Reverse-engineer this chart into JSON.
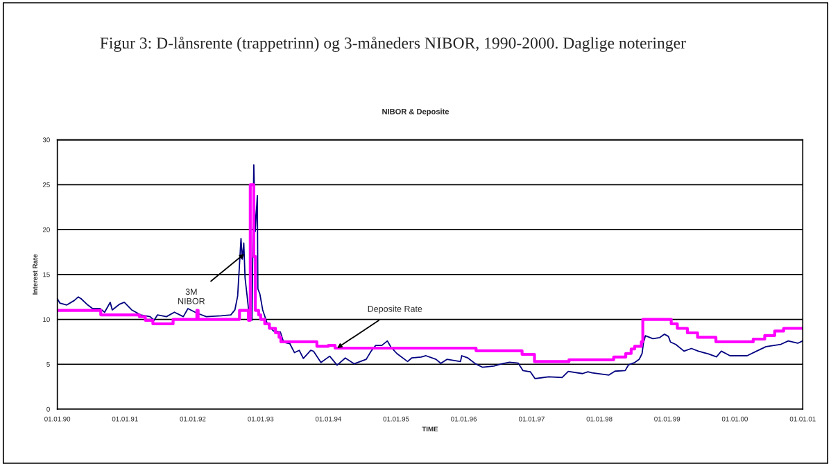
{
  "chart_data": {
    "type": "line",
    "title": "Figur 3: D-lånsrente (trappetrinn) og 3-måneders NIBOR, 1990-2000. Daglige noteringer",
    "subtitle": "NIBOR & Deposite",
    "xlabel": "TIME",
    "ylabel": "Interest Rate",
    "xlim": [
      "1990-01-01",
      "2001-01-01"
    ],
    "ylim": [
      0,
      30
    ],
    "xticks": [
      {
        "value": "1990-01-01",
        "label": "01.01.90"
      },
      {
        "value": "1991-01-01",
        "label": "01.01.91"
      },
      {
        "value": "1992-01-01",
        "label": "01.01.92"
      },
      {
        "value": "1993-01-01",
        "label": "01.01.93"
      },
      {
        "value": "1994-01-01",
        "label": "01.01.94"
      },
      {
        "value": "1995-01-01",
        "label": "01.01.95"
      },
      {
        "value": "1996-01-01",
        "label": "01.01.96"
      },
      {
        "value": "1997-01-01",
        "label": "01.01.97"
      },
      {
        "value": "1998-01-01",
        "label": "01.01.98"
      },
      {
        "value": "1999-01-01",
        "label": "01.01.99"
      },
      {
        "value": "2000-01-01",
        "label": "01.01.00"
      },
      {
        "value": "2001-01-01",
        "label": "01.01.01"
      }
    ],
    "yticks": [
      0,
      5,
      10,
      15,
      20,
      25,
      30
    ],
    "grid": "y",
    "series": [
      {
        "color": "#000080",
        "x": [
          "1990-01-01",
          "1990-01-15",
          "1990-02-21",
          "1990-04-02",
          "1990-04-24",
          "1990-05-09",
          "1990-06-14",
          "1990-07-10",
          "1990-08-19",
          "1990-09-13",
          "1990-10-13",
          "1990-10-24",
          "1990-12-03",
          "1990-12-28",
          "1991-02-06",
          "1991-03-26",
          "1991-05-16",
          "1991-06-07",
          "1991-06-25",
          "1991-08-12",
          "1991-09-24",
          "1991-11-11",
          "1991-12-06",
          "1992-01-23",
          "1992-03-14",
          "1992-06-03",
          "1992-07-24",
          "1992-08-15",
          "1992-08-30",
          "1992-09-17",
          "1992-09-24",
          "1992-10-02",
          "1992-10-09",
          "1992-10-20",
          "1992-10-31",
          "1992-11-15",
          "1992-11-25",
          "1992-12-03",
          "1992-12-14",
          "1992-12-17",
          "1992-12-28",
          "1993-01-12",
          "1993-02-06",
          "1993-03-11",
          "1993-04-17",
          "1993-05-05",
          "1993-06-07",
          "1993-07-02",
          "1993-07-28",
          "1993-08-19",
          "1993-09-28",
          "1993-10-13",
          "1993-11-22",
          "1994-01-08",
          "1994-02-17",
          "1994-04-02",
          "1994-05-20",
          "1994-07-24",
          "1994-08-19",
          "1994-09-13",
          "1994-10-16",
          "1994-11-15",
          "1994-12-03",
          "1995-01-05",
          "1995-03-04",
          "1995-03-26",
          "1995-05-16",
          "1995-06-11",
          "1995-08-04",
          "1995-08-30",
          "1995-10-02",
          "1995-12-14",
          "1995-12-21",
          "1996-01-23",
          "1996-03-04",
          "1996-04-10",
          "1996-06-11",
          "1996-07-24",
          "1996-09-03",
          "1996-10-20",
          "1996-11-15",
          "1996-12-25",
          "1997-01-19",
          "1997-04-02",
          "1997-06-14",
          "1997-07-17",
          "1997-10-02",
          "1997-10-31",
          "1997-11-22",
          "1998-02-21",
          "1998-03-26",
          "1998-05-20",
          "1998-06-07",
          "1998-07-10",
          "1998-08-04",
          "1998-08-19",
          "1998-08-26",
          "1998-09-06",
          "1998-10-16",
          "1998-11-22",
          "1998-12-17",
          "1999-01-08",
          "1999-01-19",
          "1999-02-17",
          "1999-04-02",
          "1999-05-12",
          "1999-06-18",
          "1999-08-12",
          "1999-09-24",
          "1999-10-20",
          "1999-12-06",
          "2000-03-07",
          "2000-04-27",
          "2000-06-17",
          "2000-09-05",
          "2000-10-15",
          "2000-12-05",
          "2001-01-01"
        ],
        "values": [
          12.3,
          11.8,
          11.6,
          12.1,
          12.5,
          12.3,
          11.6,
          11.2,
          11.2,
          10.8,
          11.9,
          11.05,
          11.7,
          11.9,
          11.05,
          10.5,
          10.3,
          9.9,
          10.5,
          10.3,
          10.8,
          10.3,
          11.2,
          10.7,
          10.3,
          10.4,
          10.5,
          11.05,
          12.6,
          19.0,
          16.7,
          18.5,
          14.6,
          12.6,
          10.5,
          9.9,
          27.2,
          19.8,
          23.8,
          13.4,
          12.8,
          11.05,
          9.5,
          8.7,
          8.6,
          7.45,
          7.3,
          6.3,
          6.55,
          5.65,
          6.55,
          6.45,
          5.2,
          5.9,
          4.9,
          5.7,
          5.05,
          5.55,
          6.45,
          7.1,
          7.1,
          7.6,
          6.95,
          6.2,
          5.3,
          5.7,
          5.8,
          5.95,
          5.55,
          5.1,
          5.55,
          5.3,
          5.95,
          5.7,
          5.05,
          4.67,
          4.8,
          5.05,
          5.23,
          5.13,
          4.29,
          4.16,
          3.4,
          3.6,
          3.53,
          4.2,
          3.96,
          4.16,
          4.05,
          3.8,
          4.23,
          4.3,
          4.94,
          5.19,
          5.57,
          6.2,
          7.34,
          8.18,
          7.85,
          7.97,
          8.35,
          8.1,
          7.47,
          7.2,
          6.46,
          6.76,
          6.46,
          6.15,
          5.82,
          6.46,
          5.95,
          5.95,
          6.46,
          6.96,
          7.22,
          7.6,
          7.34,
          7.6
        ]
      },
      {
        "type": "step",
        "color": "#ff00ff",
        "x": [
          "1990-01-01",
          "1990-08-23",
          "1991-03-19",
          "1991-04-20",
          "1991-05-31",
          "1991-09-17",
          "1992-01-23",
          "1992-01-30",
          "1992-09-09",
          "1992-10-27",
          "1992-11-06",
          "1992-11-25",
          "1992-12-03",
          "1992-12-21",
          "1993-01-01",
          "1993-01-23",
          "1993-02-17",
          "1993-03-22",
          "1993-04-10",
          "1993-04-20",
          "1993-10-31",
          "1994-01-01",
          "1994-02-06",
          "1996-03-07",
          "1996-11-10",
          "1997-01-16",
          "1997-07-21",
          "1998-03-19",
          "1998-05-23",
          "1998-06-21",
          "1998-07-10",
          "1998-08-15",
          "1998-08-23",
          "1999-01-23",
          "1999-02-25",
          "1999-04-20",
          "1999-06-14",
          "1999-09-21",
          "2000-04-09",
          "2000-06-10",
          "2000-08-03",
          "2000-09-20",
          "2001-01-01"
        ],
        "values": [
          11,
          10.5,
          10.3,
          9.9,
          9.5,
          10,
          11,
          10,
          11,
          9.9,
          25,
          17,
          11,
          10.5,
          10,
          9.5,
          9,
          8.5,
          8,
          7.5,
          7.0,
          7.1,
          6.8,
          6.5,
          6.1,
          5.3,
          5.5,
          5.8,
          6.2,
          6.7,
          7.0,
          7.5,
          10.0,
          9.5,
          9.0,
          8.5,
          8.0,
          7.5,
          7.8,
          8.2,
          8.7,
          9.0,
          9.0
        ]
      }
    ],
    "annotations": [
      {
        "text": "3M\nNIBOR",
        "x": "1992-10-05",
        "y": 17.3
      },
      {
        "text": "Deposite Rate",
        "x": "1994-02-17",
        "y": 6.8
      }
    ]
  }
}
